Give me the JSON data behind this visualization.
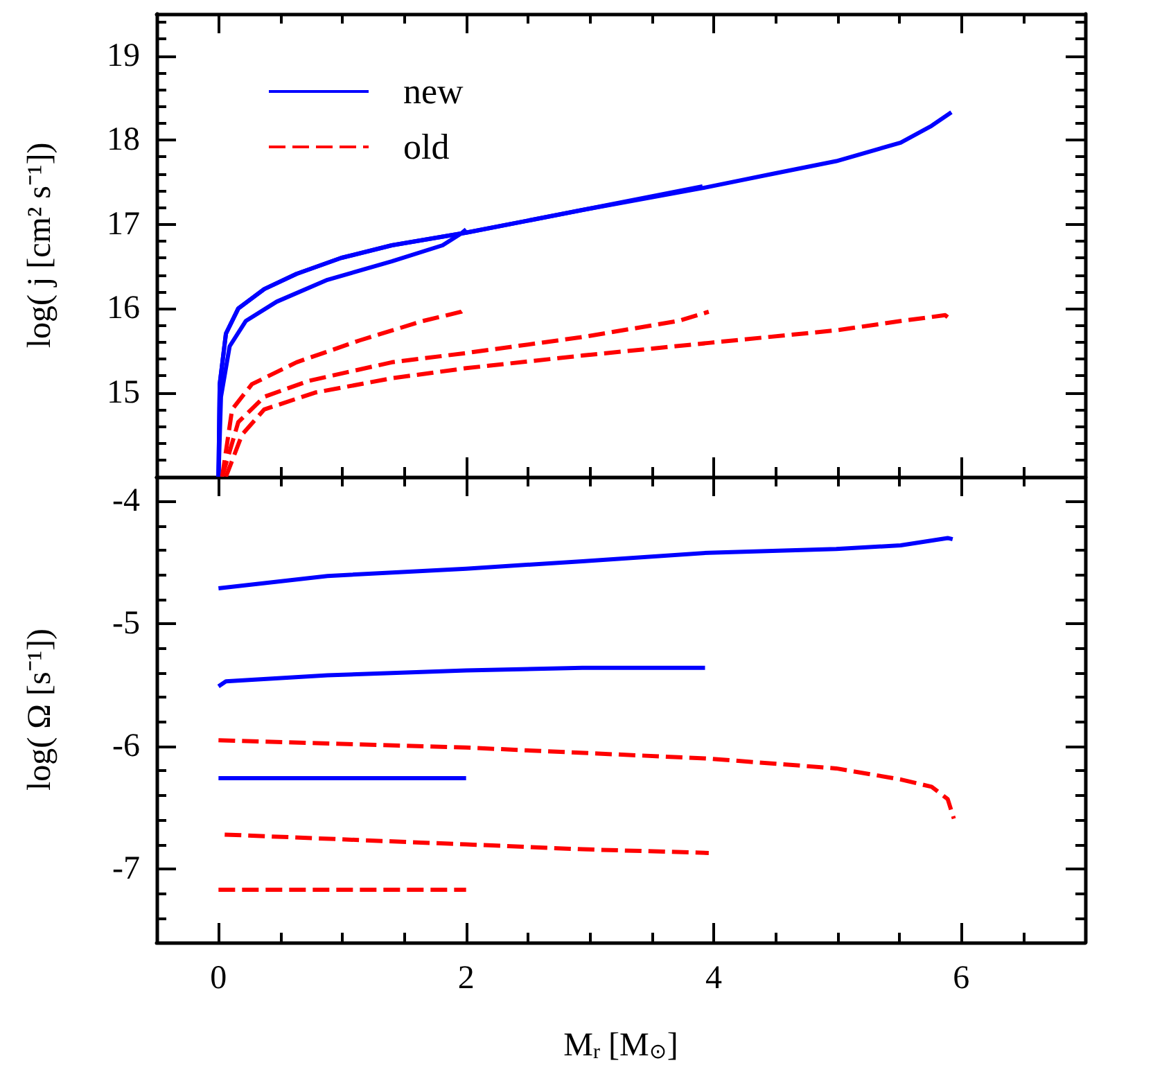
{
  "chart_data": [
    {
      "type": "line",
      "ylabel": "log( j [cm² s⁻¹])",
      "xlim": [
        -0.5,
        7
      ],
      "ylim": [
        14,
        19.5
      ],
      "xticks": [
        {
          "value": 0.5,
          "label": null
        },
        {
          "value": 1,
          "label": null
        },
        {
          "value": 1.5,
          "label": null
        },
        {
          "value": 2.5,
          "label": null
        },
        {
          "value": 3,
          "label": null
        },
        {
          "value": 3.5,
          "label": null
        },
        {
          "value": 4.5,
          "label": null
        },
        {
          "value": 5,
          "label": null
        },
        {
          "value": 5.5,
          "label": null
        },
        {
          "value": 6.5,
          "label": null
        },
        0,
        2,
        4,
        6
      ],
      "yticks": [
        {
          "value": 14.2,
          "label": null
        },
        {
          "value": 14.4,
          "label": null
        },
        {
          "value": 14.6,
          "label": null
        },
        {
          "value": 14.8,
          "label": null
        },
        {
          "value": 15.2,
          "label": null
        },
        {
          "value": 15.4,
          "label": null
        },
        {
          "value": 15.6,
          "label": null
        },
        {
          "value": 15.8,
          "label": null
        },
        {
          "value": 16.2,
          "label": null
        },
        {
          "value": 16.4,
          "label": null
        },
        {
          "value": 16.6,
          "label": null
        },
        {
          "value": 16.8,
          "label": null
        },
        {
          "value": 17.2,
          "label": null
        },
        {
          "value": 17.4,
          "label": null
        },
        {
          "value": 17.6,
          "label": null
        },
        {
          "value": 17.8,
          "label": null
        },
        {
          "value": 18.2,
          "label": null
        },
        {
          "value": 18.4,
          "label": null
        },
        {
          "value": 18.6,
          "label": null
        },
        {
          "value": 18.8,
          "label": null
        },
        {
          "value": 19.2,
          "label": null
        },
        {
          "value": 19.4,
          "label": null
        },
        15,
        16,
        17,
        18,
        19
      ],
      "tick_labels": "y",
      "legend": "top left",
      "grid": false,
      "marker": "none",
      "series": [
        {
          "name": "new",
          "color": "#0000ff",
          "line_style": "solid",
          "x": [
            0,
            0.01,
            0.06,
            0.16,
            0.37,
            0.63,
            0.99,
            1.4,
            2.0,
            2.94,
            3.91,
            4.48,
            4.99,
            5.51,
            5.76,
            5.92
          ],
          "values": [
            14,
            15.1,
            15.7,
            16.0,
            16.23,
            16.41,
            16.6,
            16.75,
            16.9,
            17.17,
            17.43,
            17.6,
            17.75,
            17.97,
            18.17,
            18.33
          ]
        },
        {
          "color": "#0000ff",
          "line_style": "solid",
          "x": [
            0,
            0.01,
            0.06,
            0.16,
            0.37,
            0.63,
            0.99,
            1.4,
            2.0,
            2.94,
            3.91
          ],
          "values": [
            14,
            15.1,
            15.7,
            16.0,
            16.23,
            16.41,
            16.6,
            16.75,
            16.9,
            17.17,
            17.45
          ]
        },
        {
          "color": "#0000ff",
          "line_style": "solid",
          "x": [
            0,
            0.02,
            0.09,
            0.22,
            0.47,
            0.88,
            1.4,
            1.81,
            1.96,
            2.0
          ],
          "values": [
            14,
            14.95,
            15.55,
            15.85,
            16.08,
            16.34,
            16.56,
            16.75,
            16.89,
            16.94
          ]
        },
        {
          "name": "old",
          "color": "#ff0000",
          "line_style": "dashed",
          "x": [
            0.03,
            0.11,
            0.27,
            0.63,
            1.14,
            1.65,
            1.96,
            2.0
          ],
          "values": [
            14,
            14.8,
            15.1,
            15.36,
            15.62,
            15.85,
            15.96,
            16.0
          ]
        },
        {
          "color": "#ff0000",
          "line_style": "dashed",
          "x": [
            0.03,
            0.16,
            0.37,
            0.73,
            1.4,
            2.0,
            2.94,
            3.71,
            3.96
          ],
          "values": [
            14,
            14.65,
            14.95,
            15.14,
            15.36,
            15.47,
            15.66,
            15.85,
            15.96
          ]
        },
        {
          "color": "#ff0000",
          "line_style": "dashed",
          "x": [
            0.06,
            0.19,
            0.37,
            0.78,
            1.4,
            2.0,
            2.94,
            3.96,
            4.99,
            5.51,
            5.87,
            5.93
          ],
          "values": [
            14,
            14.5,
            14.8,
            15.0,
            15.17,
            15.29,
            15.44,
            15.59,
            15.74,
            15.85,
            15.92,
            15.85
          ]
        }
      ]
    },
    {
      "type": "line",
      "xlabel": "M$_{r}$ [M$_{⊙}$]",
      "ylabel": "log( Ω [s⁻¹])",
      "xlim": [
        -0.5,
        7
      ],
      "ylim": [
        -7.6,
        -3.8
      ],
      "xticks": [
        {
          "value": 0.5,
          "label": null
        },
        {
          "value": 1,
          "label": null
        },
        {
          "value": 1.5,
          "label": null
        },
        {
          "value": 2.5,
          "label": null
        },
        {
          "value": 3,
          "label": null
        },
        {
          "value": 3.5,
          "label": null
        },
        {
          "value": 4.5,
          "label": null
        },
        {
          "value": 5,
          "label": null
        },
        {
          "value": 5.5,
          "label": null
        },
        {
          "value": 6.5,
          "label": null
        },
        0,
        2,
        4,
        6
      ],
      "yticks": [
        {
          "value": -7.4,
          "label": null
        },
        {
          "value": -7.2,
          "label": null
        },
        {
          "value": -6.8,
          "label": null
        },
        {
          "value": -6.6,
          "label": null
        },
        {
          "value": -6.4,
          "label": null
        },
        {
          "value": -6.2,
          "label": null
        },
        {
          "value": -5.8,
          "label": null
        },
        {
          "value": -5.6,
          "label": null
        },
        {
          "value": -5.4,
          "label": null
        },
        {
          "value": -5.2,
          "label": null
        },
        {
          "value": -4.8,
          "label": null
        },
        {
          "value": -4.6,
          "label": null
        },
        {
          "value": -4.4,
          "label": null
        },
        {
          "value": -4.2,
          "label": null
        },
        -7,
        -6,
        -5,
        -4
      ],
      "grid": false,
      "marker": "none",
      "series": [
        {
          "color": "#0000ff",
          "line_style": "solid",
          "x": [
            0,
            0.88,
            2,
            2.94,
            3.96,
            4.99,
            5.51,
            5.89,
            5.93
          ],
          "values": [
            -4.71,
            -4.61,
            -4.55,
            -4.49,
            -4.42,
            -4.39,
            -4.36,
            -4.3,
            -4.31
          ]
        },
        {
          "color": "#0000ff",
          "line_style": "solid",
          "x": [
            0,
            0.06,
            0.88,
            2,
            2.94,
            3.93
          ],
          "values": [
            -5.51,
            -5.47,
            -5.42,
            -5.38,
            -5.36,
            -5.36
          ]
        },
        {
          "color": "#0000ff",
          "line_style": "solid",
          "x": [
            0,
            2
          ],
          "values": [
            -6.26,
            -6.26
          ]
        },
        {
          "color": "#ff0000",
          "line_style": "dashed",
          "x": [
            0,
            2,
            3.96,
            4.99,
            5.51,
            5.76,
            5.89,
            5.94
          ],
          "values": [
            -5.95,
            -6.01,
            -6.1,
            -6.18,
            -6.27,
            -6.33,
            -6.43,
            -6.59
          ]
        },
        {
          "color": "#ff0000",
          "line_style": "dashed",
          "x": [
            0.05,
            2,
            2.94,
            3.96
          ],
          "values": [
            -6.72,
            -6.8,
            -6.84,
            -6.87
          ]
        },
        {
          "color": "#ff0000",
          "line_style": "dashed",
          "x": [
            0,
            2
          ],
          "values": [
            -7.17,
            -7.17
          ]
        }
      ]
    }
  ]
}
